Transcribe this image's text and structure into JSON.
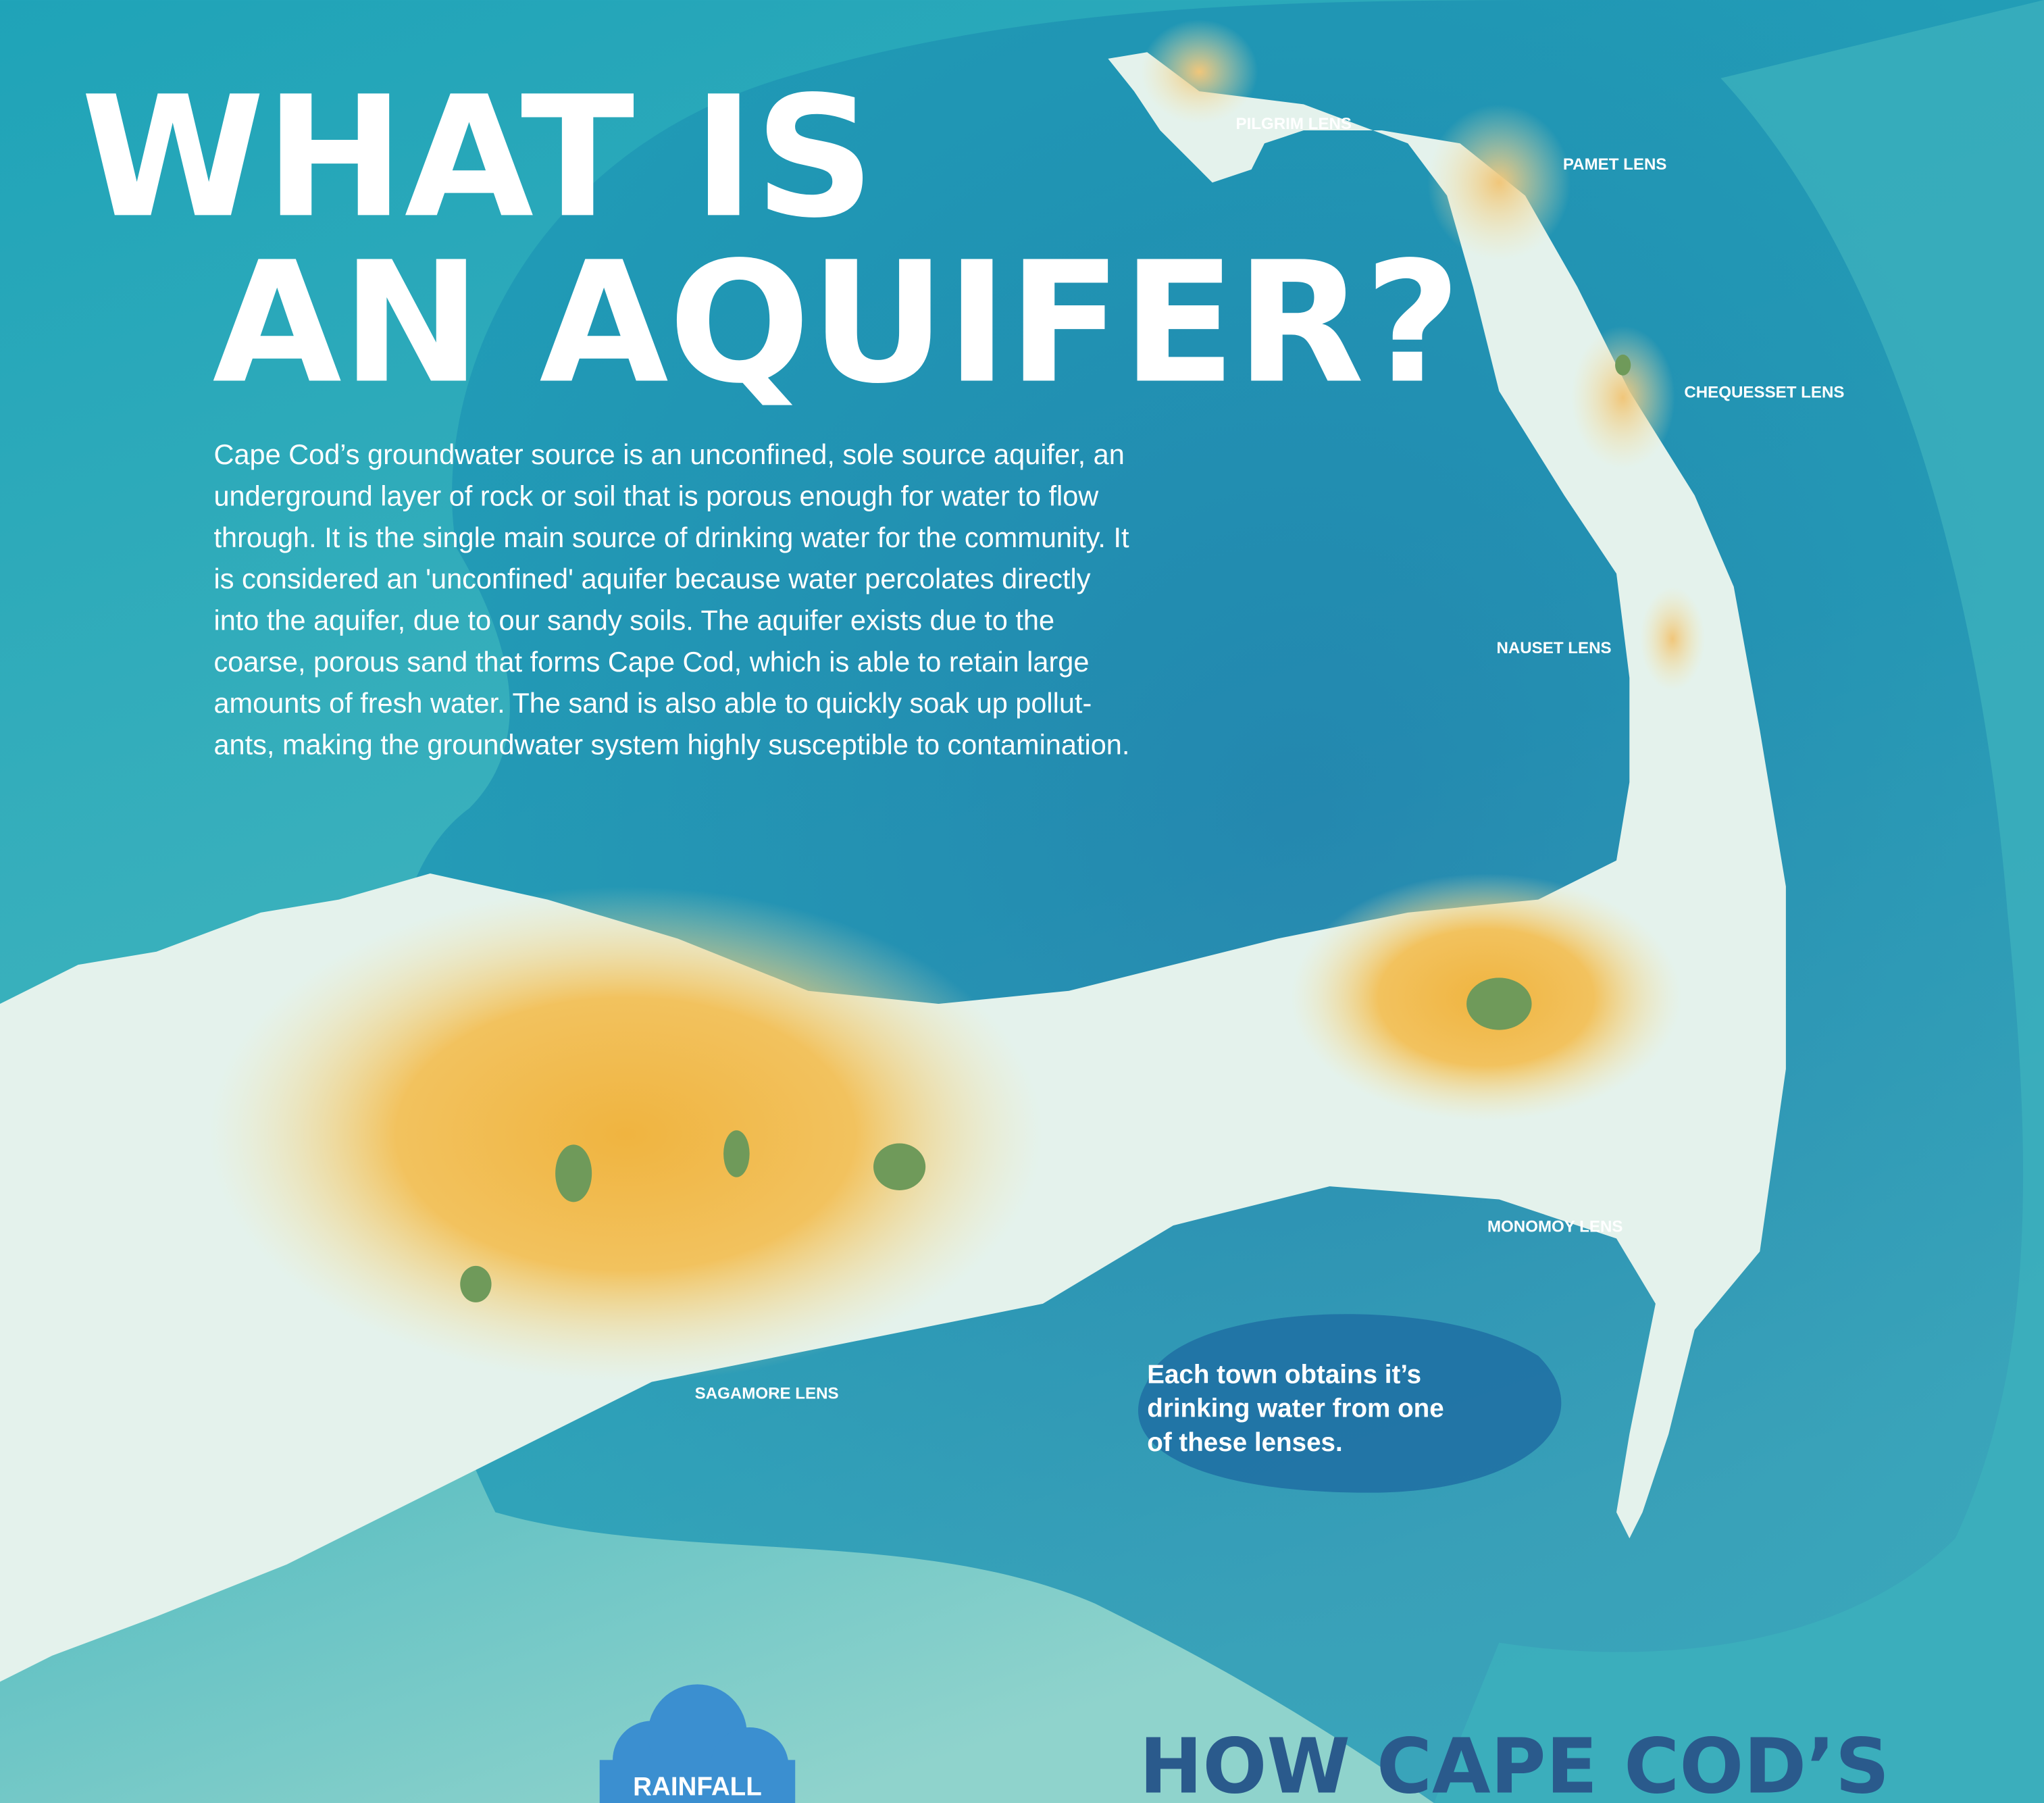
{
  "header": {
    "title_lines": [
      "WHAT IS",
      "AN AQUIFER?"
    ]
  },
  "intro": {
    "lines": [
      "Cape Cod’s groundwater source is an unconfined, sole source aquifer, an",
      "underground layer of rock or soil that is porous enough for water to flow",
      "through. It is the single main source of drinking water for the community. It",
      "is considered an 'unconfined' aquifer because water percolates directly",
      "into the aquifer, due to our sandy soils. The aquifer exists due to the",
      "coarse, porous sand that forms Cape Cod, which is able to retain large",
      "amounts of fresh water. The sand is also able to quickly soak up pollut-",
      "ants, making the groundwater system highly susceptible to contamination."
    ]
  },
  "lenses": [
    "PILGRIM LENS",
    "PAMET LENS",
    "CHEQUESSET LENS",
    "NAUSET LENS",
    "MONOMOY LENS",
    "SAGAMORE LENS"
  ],
  "callout": {
    "lines": [
      "Each town obtains it’s",
      "drinking water from one",
      "of these lenses."
    ]
  },
  "rainfall": "RAINFALL",
  "next_heading": "HOW CAPE COD’S"
}
